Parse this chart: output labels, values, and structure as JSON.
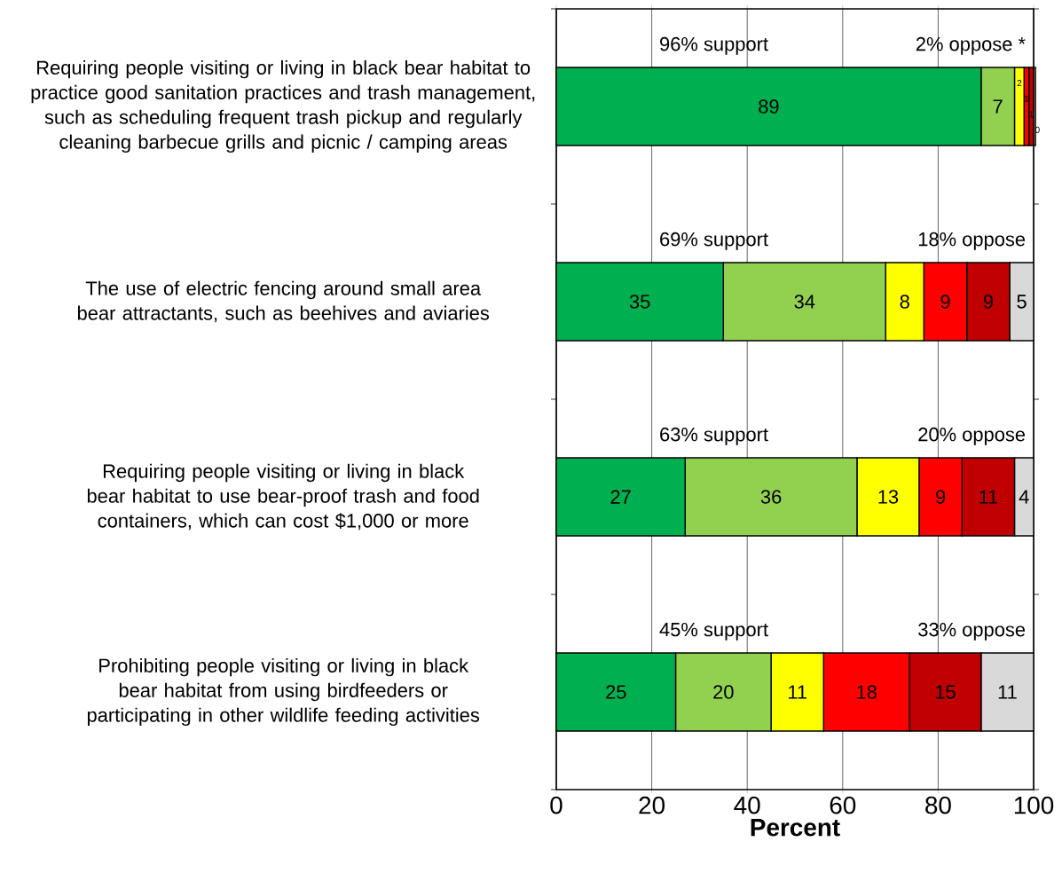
{
  "chart_data": {
    "type": "bar",
    "orientation": "horizontal",
    "stacked": true,
    "xlabel": "Percent",
    "categories": [
      "Requiring people visiting or living in black bear habitat to practice good sanitation practices and trash management, such as scheduling frequent trash pickup and regularly cleaning barbecue grills and picnic / camping areas",
      "The use of electric fencing around small area bear attractants, such as beehives and aviaries",
      "Requiring people visiting or living in black bear habitat to use bear-proof trash and food containers, which can cost $1,000 or more",
      "Prohibiting people visiting or living in black bear habitat from using birdfeeders or participating in other wildlife feeding activities"
    ],
    "series": [
      {
        "color": "#00b050",
        "values": [
          89,
          35,
          27,
          25
        ]
      },
      {
        "color": "#92d050",
        "values": [
          7,
          34,
          36,
          20
        ]
      },
      {
        "color": "#ffff00",
        "values": [
          2,
          8,
          13,
          11
        ]
      },
      {
        "color": "#ff0000",
        "values": [
          1,
          9,
          9,
          18
        ]
      },
      {
        "color": "#c00000",
        "values": [
          1,
          9,
          11,
          15
        ]
      },
      {
        "color": "#d9d9d9",
        "values": [
          0.4,
          5,
          4,
          11
        ],
        "value_labels": [
          "0",
          "5",
          "4",
          "11"
        ]
      }
    ],
    "xlim": [
      0,
      100
    ],
    "xticks": [
      0,
      20,
      40,
      60,
      80,
      100
    ],
    "grid": "x",
    "data_labels": true,
    "annotations": [
      "96% support",
      "2% oppose *",
      "69% support",
      "18% oppose",
      "63% support",
      "20% oppose",
      "45% support",
      "33% oppose"
    ]
  }
}
